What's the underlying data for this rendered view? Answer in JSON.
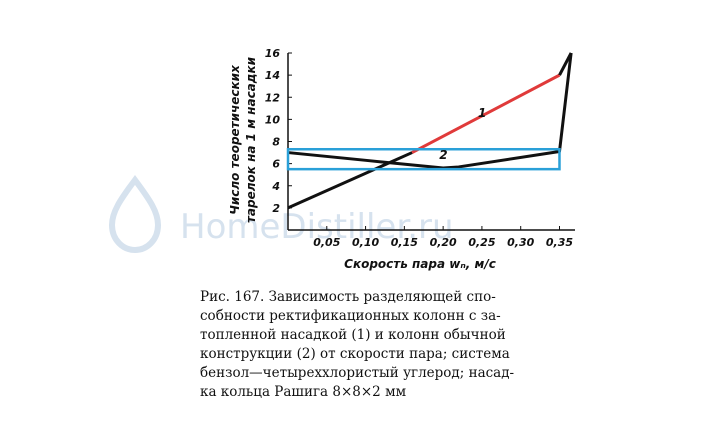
{
  "chart_data": {
    "type": "line",
    "xlabel": "Скорость пара wₙ, м/с",
    "ylabel_line1": "Число теоретических",
    "ylabel_line2": "тарелок на 1 м насадки",
    "x_ticks": [
      "0,05",
      "0,10",
      "0,15",
      "0,20",
      "0,25",
      "0,30",
      "0,35"
    ],
    "y_ticks": [
      "2",
      "4",
      "6",
      "8",
      "10",
      "12",
      "14",
      "16"
    ],
    "xlim": [
      0.0,
      0.37
    ],
    "ylim": [
      0,
      16
    ],
    "grid": false,
    "series": [
      {
        "name": "1",
        "color": "#111111",
        "highlight_color": "#e03a3a",
        "points": [
          [
            0.0,
            2.0
          ],
          [
            0.16,
            7.0
          ],
          [
            0.35,
            14.0
          ],
          [
            0.365,
            16.0
          ]
        ]
      },
      {
        "name": "2",
        "color": "#111111",
        "points": [
          [
            0.0,
            7.0
          ],
          [
            0.1,
            6.3
          ],
          [
            0.2,
            5.6
          ],
          [
            0.22,
            5.7
          ],
          [
            0.35,
            7.1
          ],
          [
            0.365,
            16.0
          ]
        ]
      }
    ],
    "highlight_box": {
      "x_range": [
        0.0,
        0.35
      ],
      "y_range": [
        5.5,
        7.3
      ],
      "color": "#2aa0d8"
    }
  },
  "watermark": "HomeDistiller.ru",
  "caption": {
    "lines": [
      "Рис. 167. Зависимость разделяющей спо-",
      "собности ректификационных колонн с за-",
      "топленной насадкой (1) и колонн обычной",
      "конструкции (2) от скорости пара; система",
      "бензол—четыреххлористый углерод; насад-",
      "ка кольца Рашига 8×8×2 мм"
    ]
  }
}
